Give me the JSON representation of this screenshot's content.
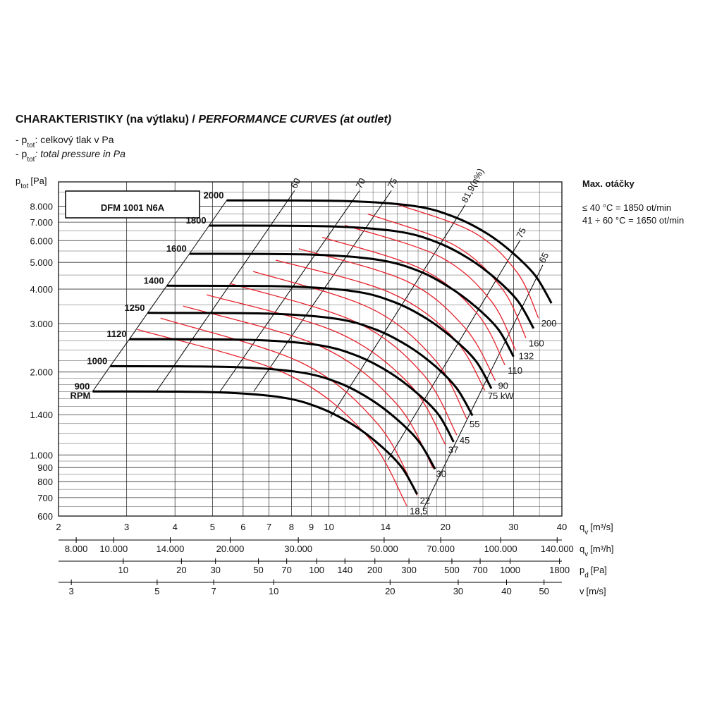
{
  "header": {
    "title_cz": "CHARAKTERISTIKY (na výtlaku) /",
    "title_en": "PERFORMANCE CURVES (at outlet)"
  },
  "notes": [
    {
      "symbol": "- p",
      "sub": "tot",
      "text": ": celkový tlak v Pa"
    },
    {
      "symbol": "- p",
      "sub": "tot",
      "text": ": total pressure in Pa"
    }
  ],
  "speed_info": {
    "title": "Max. otáčky",
    "lines": [
      "≤ 40 °C = 1850 ot/min",
      "41 ÷ 60 °C = 1650 ot/min"
    ]
  },
  "chart_data": {
    "type": "line",
    "model": "DFM 1001 N6A",
    "log_x": true,
    "log_y": true,
    "grid": true,
    "y_label": {
      "symbol": "p",
      "sub": "tot",
      "unit": "[Pa]"
    },
    "x_label": {
      "symbol": "q",
      "sub": "v",
      "unit": "[m³/s]"
    },
    "xlim": [
      2,
      40
    ],
    "ylim": [
      600,
      9800
    ],
    "xticks": [
      2,
      3,
      4,
      5,
      6,
      7,
      8,
      9,
      10,
      14,
      20,
      30,
      40
    ],
    "yticks": [
      600,
      700,
      800,
      900,
      {
        "value": 1000,
        "label": "1.000"
      },
      {
        "value": 1400,
        "label": "1.400"
      },
      {
        "value": 2000,
        "label": "2.000"
      },
      {
        "value": 3000,
        "label": "3.000"
      },
      {
        "value": 4000,
        "label": "4.000"
      },
      {
        "value": 5000,
        "label": "5.000"
      },
      {
        "value": 6000,
        "label": "6.000"
      },
      {
        "value": 7000,
        "label": "7.000"
      },
      {
        "value": 8000,
        "label": "8.000"
      }
    ],
    "x_minor_grid": [
      11,
      12,
      13,
      15,
      16,
      17,
      18,
      19,
      25,
      35
    ],
    "y_minor_grid": [
      650,
      750,
      850,
      950,
      1100,
      1200,
      1300,
      1500,
      1600,
      1700,
      1800,
      1900,
      2200,
      2400,
      2600,
      2800,
      3500,
      4500,
      5500,
      6500,
      7500,
      9000
    ],
    "speed_unit": "RPM",
    "series": [
      {
        "name": "900",
        "color": "#000000",
        "x": [
          2.45,
          5.0,
          7.5,
          9.5,
          11.5,
          13.5,
          15.4,
          16.9
        ],
        "values": [
          1700,
          1690,
          1620,
          1480,
          1290,
          1090,
          904,
          720
        ]
      },
      {
        "name": "1000",
        "color": "#000000",
        "x": [
          2.72,
          5.56,
          8.33,
          10.6,
          12.8,
          15.0,
          17.1,
          18.8
        ],
        "values": [
          2100,
          2087,
          2000,
          1828,
          1593,
          1346,
          1116,
          889
        ]
      },
      {
        "name": "1120",
        "color": "#000000",
        "x": [
          3.05,
          6.22,
          9.33,
          11.8,
          14.3,
          16.8,
          19.2,
          21.0
        ],
        "values": [
          2633,
          2618,
          2509,
          2293,
          1998,
          1688,
          1400,
          1115
        ]
      },
      {
        "name": "1250",
        "color": "#000000",
        "x": [
          3.4,
          6.94,
          10.4,
          13.2,
          16.0,
          18.8,
          21.4,
          23.5
        ],
        "values": [
          3279,
          3260,
          3125,
          2855,
          2488,
          2103,
          1744,
          1389
        ]
      },
      {
        "name": "1400",
        "color": "#000000",
        "x": [
          3.81,
          7.78,
          11.7,
          14.8,
          17.9,
          21.0,
          24.0,
          26.3
        ],
        "values": [
          4114,
          4090,
          3920,
          3582,
          3122,
          2638,
          2188,
          1742
        ]
      },
      {
        "name": "1600",
        "color": "#000000",
        "x": [
          4.36,
          8.89,
          13.3,
          16.9,
          20.4,
          24.0,
          27.4,
          30.0
        ],
        "values": [
          5372,
          5340,
          5119,
          4677,
          4076,
          3444,
          2857,
          2275
        ]
      },
      {
        "name": "1800",
        "color": "#000000",
        "x": [
          4.9,
          10.0,
          15.0,
          19.0,
          23.0,
          27.0,
          30.8,
          33.8
        ],
        "values": [
          6800,
          6760,
          6480,
          5920,
          5160,
          4360,
          3616,
          2880
        ]
      },
      {
        "name": "2000",
        "color": "#000000",
        "x": [
          5.44,
          11.1,
          16.7,
          21.1,
          25.6,
          30.0,
          34.2,
          37.6
        ],
        "values": [
          8395,
          8345,
          8000,
          7308,
          6370,
          5382,
          4464,
          3555
        ]
      }
    ],
    "power_series": [
      {
        "name": "18,5",
        "color": "#e8212b",
        "x": [
          3.2,
          7.72,
          12.5,
          15.9
        ],
        "values": [
          2854,
          1976,
          1180,
          653
        ]
      },
      {
        "name": "22",
        "color": "#e8212b",
        "x": [
          3.67,
          8.5,
          13.4,
          16.9
        ],
        "values": [
          3137,
          2160,
          1290,
          713
        ]
      },
      {
        "name": "30",
        "color": "#e8212b",
        "x": [
          4.2,
          9.52,
          14.9,
          18.6
        ],
        "values": [
          3470,
          2475,
          1541,
          894
        ]
      },
      {
        "name": "37",
        "color": "#e8212b",
        "x": [
          4.83,
          10.5,
          16.2,
          20.0
        ],
        "values": [
          3815,
          2787,
          1798,
          1090
        ]
      },
      {
        "name": "45",
        "color": "#e8212b",
        "x": [
          5.54,
          11.7,
          17.5,
          21.4
        ],
        "values": [
          4194,
          3044,
          1965,
          1180
        ]
      },
      {
        "name": "55",
        "color": "#e8212b",
        "x": [
          6.37,
          12.8,
          18.8,
          22.7
        ],
        "values": [
          4638,
          3409,
          2212,
          1353
        ]
      },
      {
        "name": "75 kW",
        "color": "#e8212b",
        "x": [
          7.28,
          14.4,
          21.0,
          25.3
        ],
        "values": [
          5100,
          3883,
          2658,
          1715
        ]
      },
      {
        "name": "90",
        "color": "#e8212b",
        "x": [
          8.36,
          15.9,
          22.5,
          26.9
        ],
        "values": [
          5607,
          4269,
          2887,
          1864
        ]
      },
      {
        "name": "110",
        "color": "#e8212b",
        "x": [
          9.61,
          17.4,
          24.2,
          28.5
        ],
        "values": [
          6164,
          4721,
          3251,
          2120
        ]
      },
      {
        "name": "132",
        "color": "#e8212b",
        "x": [
          11.0,
          19.3,
          26.2,
          30.4
        ],
        "values": [
          6817,
          5253,
          3638,
          2390
        ]
      },
      {
        "name": "160",
        "color": "#e8212b",
        "x": [
          12.6,
          21.1,
          28.0,
          32.3
        ],
        "values": [
          7493,
          5774,
          4022,
          2660
        ]
      },
      {
        "name": "200",
        "color": "#e8212b",
        "x": [
          14.5,
          23.5,
          30.6,
          34.8
        ],
        "values": [
          8239,
          6461,
          4611,
          3140
        ]
      }
    ],
    "efficiency_lines": [
      {
        "name": "60",
        "x": [
          3.58,
          8.15
        ],
        "values": [
          1700,
          9110
        ]
      },
      {
        "name": "70",
        "x": [
          5.23,
          12.0
        ],
        "values": [
          1700,
          9110
        ]
      },
      {
        "name": "75",
        "x": [
          6.39,
          14.5
        ],
        "values": [
          1700,
          9110
        ]
      },
      {
        "name": "81,9(η%)",
        "x": [
          10.1,
          22.5
        ],
        "values": [
          1370,
          8090
        ]
      },
      {
        "name": "75",
        "x": [
          14.2,
          31.2
        ],
        "values": [
          959,
          6020
        ]
      },
      {
        "name": "65",
        "x": [
          17.5,
          35.7
        ],
        "values": [
          634,
          4892
        ]
      }
    ],
    "secondary_axes": [
      {
        "label": {
          "symbol": "q",
          "sub": "v",
          "unit": "[m³/h]"
        },
        "xlim": [
          7200,
          144000
        ],
        "xticks": [
          {
            "value": 8000,
            "label": "8.000"
          },
          {
            "value": 10000,
            "label": "10.000"
          },
          {
            "value": 14000,
            "label": "14.000"
          },
          {
            "value": 20000,
            "label": "20.000"
          },
          {
            "value": 30000,
            "label": "30.000"
          },
          {
            "value": 50000,
            "label": "50.000"
          },
          {
            "value": 70000,
            "label": "70.000"
          },
          {
            "value": 100000,
            "label": "100.000"
          },
          {
            "value": 140000,
            "label": "140.000"
          }
        ]
      },
      {
        "label": {
          "symbol": "p",
          "sub": "d",
          "unit": "[Pa]"
        },
        "xlim": [
          4.63,
          1852
        ],
        "xticks": [
          10,
          20,
          30,
          50,
          70,
          100,
          140,
          200,
          300,
          500,
          700,
          1000,
          1800
        ]
      },
      {
        "label": {
          "symbol": "v",
          "sub": "",
          "unit": "[m/s]"
        },
        "xlim": [
          2.78,
          55.6
        ],
        "xticks": [
          3,
          5,
          7,
          10,
          20,
          30,
          40,
          50
        ]
      }
    ]
  }
}
